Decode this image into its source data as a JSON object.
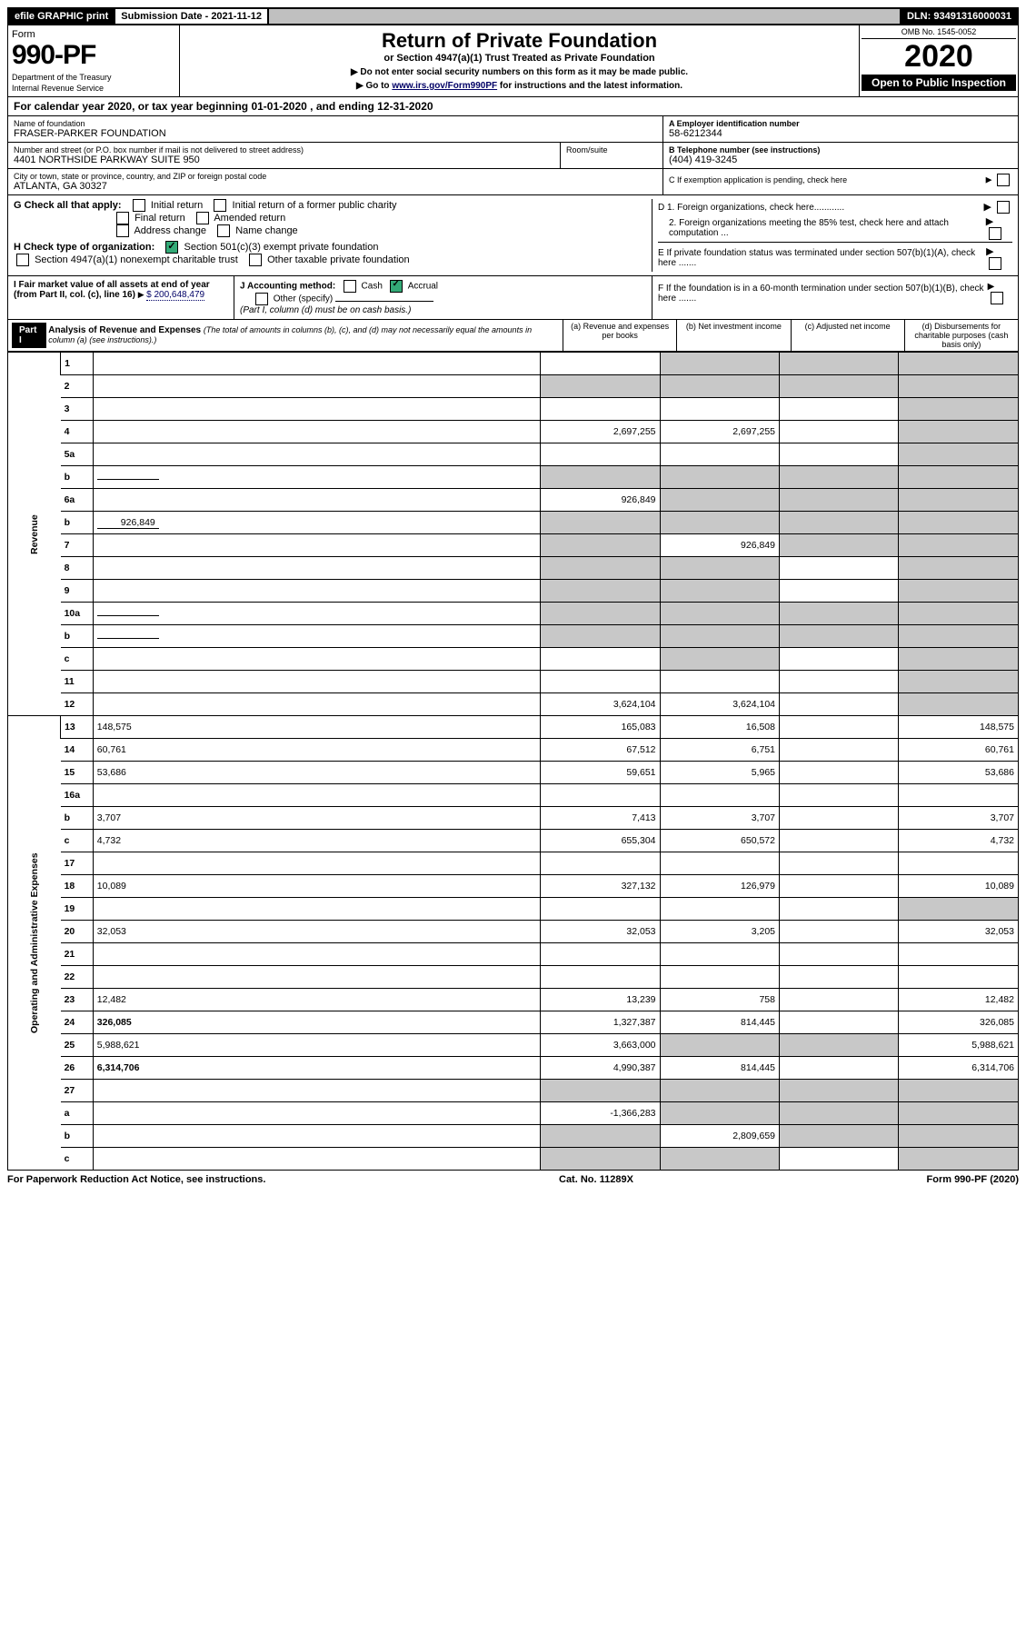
{
  "topbar": {
    "efile": "efile GRAPHIC print",
    "submission_label": "Submission Date - 2021-11-12",
    "dln_label": "DLN: 93491316000031"
  },
  "header": {
    "form_word": "Form",
    "form_number": "990-PF",
    "dept1": "Department of the Treasury",
    "dept2": "Internal Revenue Service",
    "title": "Return of Private Foundation",
    "subtitle": "or Section 4947(a)(1) Trust Treated as Private Foundation",
    "note1": "▶ Do not enter social security numbers on this form as it may be made public.",
    "note2": "▶ Go to ",
    "note2_link": "www.irs.gov/Form990PF",
    "note2_after": " for instructions and the latest information.",
    "omb": "OMB No. 1545-0052",
    "year": "2020",
    "open": "Open to Public Inspection"
  },
  "calyear": "For calendar year 2020, or tax year beginning 01-01-2020              , and ending 12-31-2020",
  "entity": {
    "name_label": "Name of foundation",
    "name": "FRASER-PARKER FOUNDATION",
    "addr_label": "Number and street (or P.O. box number if mail is not delivered to street address)",
    "addr": "4401 NORTHSIDE PARKWAY SUITE 950",
    "room_label": "Room/suite",
    "city_label": "City or town, state or province, country, and ZIP or foreign postal code",
    "city": "ATLANTA, GA  30327",
    "a_label": "A Employer identification number",
    "a_val": "58-6212344",
    "b_label": "B Telephone number (see instructions)",
    "b_val": "(404) 419-3245",
    "c_label": "C If exemption application is pending, check here"
  },
  "checks": {
    "g_label": "G Check all that apply:",
    "initial": "Initial return",
    "initial_former": "Initial return of a former public charity",
    "final": "Final return",
    "amended": "Amended return",
    "addr_change": "Address change",
    "name_change": "Name change",
    "h_label": "H Check type of organization:",
    "h_501c3": "Section 501(c)(3) exempt private foundation",
    "h_4947": "Section 4947(a)(1) nonexempt charitable trust",
    "h_other_tax": "Other taxable private foundation",
    "d1": "D 1. Foreign organizations, check here............",
    "d2": "2. Foreign organizations meeting the 85% test, check here and attach computation ...",
    "e": "E  If private foundation status was terminated under section 507(b)(1)(A), check here .......",
    "f": "F  If the foundation is in a 60-month termination under section 507(b)(1)(B), check here ......."
  },
  "fmv": {
    "i_label": "I Fair market value of all assets at end of year (from Part II, col. (c), line 16)",
    "i_val": "$  200,648,479",
    "j_label": "J Accounting method:",
    "cash": "Cash",
    "accrual": "Accrual",
    "other": "Other (specify)",
    "note": "(Part I, column (d) must be on cash basis.)"
  },
  "part1": {
    "label": "Part I",
    "title": "Analysis of Revenue and Expenses",
    "title_note": " (The total of amounts in columns (b), (c), and (d) may not necessarily equal the amounts in column (a) (see instructions).)",
    "col_a": "(a)    Revenue and expenses per books",
    "col_b": "(b)    Net investment income",
    "col_c": "(c)   Adjusted net income",
    "col_d": "(d)   Disbursements for charitable purposes (cash basis only)"
  },
  "side": {
    "revenue": "Revenue",
    "expenses": "Operating and Administrative Expenses"
  },
  "rows": [
    {
      "n": "1",
      "d": "",
      "a": "",
      "b": "",
      "c": "",
      "b_grey": true,
      "c_grey": true,
      "d_grey": true
    },
    {
      "n": "2",
      "d": "",
      "a": "",
      "b": "",
      "c": "",
      "a_grey": true,
      "b_grey": true,
      "c_grey": true,
      "d_grey": true
    },
    {
      "n": "3",
      "d": "",
      "a": "",
      "b": "",
      "c": "",
      "d_grey": true
    },
    {
      "n": "4",
      "d": "",
      "a": "2,697,255",
      "b": "2,697,255",
      "c": "",
      "d_grey": true
    },
    {
      "n": "5a",
      "d": "",
      "a": "",
      "b": "",
      "c": "",
      "d_grey": true
    },
    {
      "n": "b",
      "d": "",
      "a": "",
      "b": "",
      "c": "",
      "a_grey": true,
      "b_grey": true,
      "c_grey": true,
      "d_grey": true,
      "inline": ""
    },
    {
      "n": "6a",
      "d": "",
      "a": "926,849",
      "b": "",
      "c": "",
      "b_grey": true,
      "c_grey": true,
      "d_grey": true
    },
    {
      "n": "b",
      "d": "",
      "a": "",
      "b": "",
      "c": "",
      "a_grey": true,
      "b_grey": true,
      "c_grey": true,
      "d_grey": true,
      "inline": "926,849"
    },
    {
      "n": "7",
      "d": "",
      "a": "",
      "b": "926,849",
      "c": "",
      "a_grey": true,
      "c_grey": true,
      "d_grey": true
    },
    {
      "n": "8",
      "d": "",
      "a": "",
      "b": "",
      "c": "",
      "a_grey": true,
      "b_grey": true,
      "d_grey": true
    },
    {
      "n": "9",
      "d": "",
      "a": "",
      "b": "",
      "c": "",
      "a_grey": true,
      "b_grey": true,
      "d_grey": true
    },
    {
      "n": "10a",
      "d": "",
      "a": "",
      "b": "",
      "c": "",
      "a_grey": true,
      "b_grey": true,
      "c_grey": true,
      "d_grey": true,
      "inline": ""
    },
    {
      "n": "b",
      "d": "",
      "a": "",
      "b": "",
      "c": "",
      "a_grey": true,
      "b_grey": true,
      "c_grey": true,
      "d_grey": true,
      "inline": ""
    },
    {
      "n": "c",
      "d": "",
      "a": "",
      "b": "",
      "c": "",
      "b_grey": true,
      "d_grey": true
    },
    {
      "n": "11",
      "d": "",
      "a": "",
      "b": "",
      "c": "",
      "d_grey": true
    },
    {
      "n": "12",
      "d": "",
      "a": "3,624,104",
      "b": "3,624,104",
      "c": "",
      "bold": true,
      "d_grey": true
    }
  ],
  "exp_rows": [
    {
      "n": "13",
      "d": "148,575",
      "a": "165,083",
      "b": "16,508",
      "c": ""
    },
    {
      "n": "14",
      "d": "60,761",
      "a": "67,512",
      "b": "6,751",
      "c": ""
    },
    {
      "n": "15",
      "d": "53,686",
      "a": "59,651",
      "b": "5,965",
      "c": ""
    },
    {
      "n": "16a",
      "d": "",
      "a": "",
      "b": "",
      "c": ""
    },
    {
      "n": "b",
      "d": "3,707",
      "a": "7,413",
      "b": "3,707",
      "c": ""
    },
    {
      "n": "c",
      "d": "4,732",
      "a": "655,304",
      "b": "650,572",
      "c": ""
    },
    {
      "n": "17",
      "d": "",
      "a": "",
      "b": "",
      "c": ""
    },
    {
      "n": "18",
      "d": "10,089",
      "a": "327,132",
      "b": "126,979",
      "c": ""
    },
    {
      "n": "19",
      "d": "",
      "a": "",
      "b": "",
      "c": "",
      "d_grey": true
    },
    {
      "n": "20",
      "d": "32,053",
      "a": "32,053",
      "b": "3,205",
      "c": ""
    },
    {
      "n": "21",
      "d": "",
      "a": "",
      "b": "",
      "c": ""
    },
    {
      "n": "22",
      "d": "",
      "a": "",
      "b": "",
      "c": ""
    },
    {
      "n": "23",
      "d": "12,482",
      "a": "13,239",
      "b": "758",
      "c": ""
    },
    {
      "n": "24",
      "d": "326,085",
      "a": "1,327,387",
      "b": "814,445",
      "c": "",
      "bold": true
    },
    {
      "n": "25",
      "d": "5,988,621",
      "a": "3,663,000",
      "b": "",
      "c": "",
      "b_grey": true,
      "c_grey": true
    },
    {
      "n": "26",
      "d": "6,314,706",
      "a": "4,990,387",
      "b": "814,445",
      "c": "",
      "bold": true
    },
    {
      "n": "27",
      "d": "",
      "a": "",
      "b": "",
      "c": "",
      "a_grey": true,
      "b_grey": true,
      "c_grey": true,
      "d_grey": true
    },
    {
      "n": "a",
      "d": "",
      "a": "-1,366,283",
      "b": "",
      "c": "",
      "bold": true,
      "b_grey": true,
      "c_grey": true,
      "d_grey": true
    },
    {
      "n": "b",
      "d": "",
      "a": "",
      "b": "2,809,659",
      "c": "",
      "bold": true,
      "a_grey": true,
      "c_grey": true,
      "d_grey": true
    },
    {
      "n": "c",
      "d": "",
      "a": "",
      "b": "",
      "c": "",
      "bold": true,
      "a_grey": true,
      "b_grey": true,
      "d_grey": true
    }
  ],
  "footer": {
    "left": "For Paperwork Reduction Act Notice, see instructions.",
    "mid": "Cat. No. 11289X",
    "right": "Form 990-PF (2020)"
  }
}
